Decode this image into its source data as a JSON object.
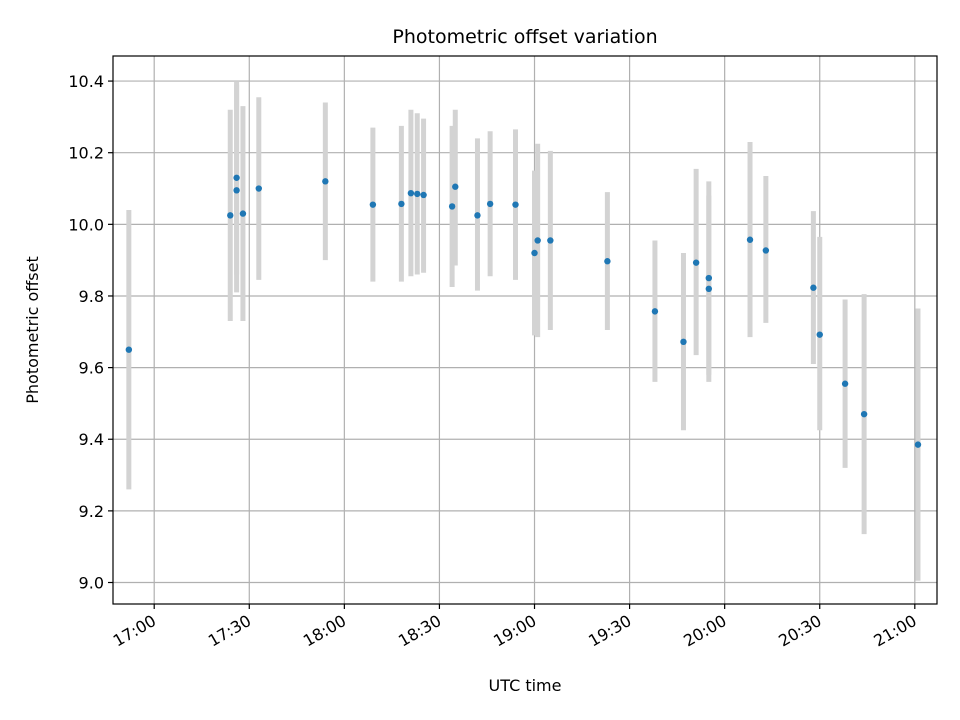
{
  "chart_data": {
    "type": "scatter",
    "title": "Photometric offset variation",
    "xlabel": "UTC time",
    "ylabel": "Photometric offset",
    "grid": true,
    "xlim": [
      "16:47",
      "21:07"
    ],
    "ylim": [
      8.94,
      10.47
    ],
    "x_ticks": [
      "17:00",
      "17:30",
      "18:00",
      "18:30",
      "19:00",
      "19:30",
      "20:00",
      "20:30",
      "21:00"
    ],
    "y_ticks": [
      "9.0",
      "9.2",
      "9.4",
      "9.6",
      "9.8",
      "10.0",
      "10.2",
      "10.4"
    ],
    "colors": {
      "point": "#1f77b4",
      "error_bar": "#d3d3d3",
      "grid": "#b0b0b0"
    },
    "series": [
      {
        "points": [
          {
            "t": "16:52",
            "y": 9.65,
            "lo": 9.26,
            "hi": 10.04
          },
          {
            "t": "17:24",
            "y": 10.025,
            "lo": 9.73,
            "hi": 10.32
          },
          {
            "t": "17:26",
            "y": 10.095,
            "lo": 9.81,
            "hi": 10.39
          },
          {
            "t": "17:26",
            "y": 10.13,
            "lo": 9.86,
            "hi": 10.4
          },
          {
            "t": "17:28",
            "y": 10.03,
            "lo": 9.73,
            "hi": 10.33
          },
          {
            "t": "17:33",
            "y": 10.1,
            "lo": 9.845,
            "hi": 10.355
          },
          {
            "t": "17:54",
            "y": 10.12,
            "lo": 9.9,
            "hi": 10.34
          },
          {
            "t": "18:09",
            "y": 10.055,
            "lo": 9.84,
            "hi": 10.27
          },
          {
            "t": "18:18",
            "y": 10.057,
            "lo": 9.84,
            "hi": 10.275
          },
          {
            "t": "18:21",
            "y": 10.087,
            "lo": 9.855,
            "hi": 10.32
          },
          {
            "t": "18:23",
            "y": 10.085,
            "lo": 9.86,
            "hi": 10.31
          },
          {
            "t": "18:25",
            "y": 10.082,
            "lo": 9.865,
            "hi": 10.295
          },
          {
            "t": "18:34",
            "y": 10.05,
            "lo": 9.825,
            "hi": 10.275
          },
          {
            "t": "18:35",
            "y": 10.105,
            "lo": 9.885,
            "hi": 10.32
          },
          {
            "t": "18:42",
            "y": 10.025,
            "lo": 9.815,
            "hi": 10.24
          },
          {
            "t": "18:46",
            "y": 10.057,
            "lo": 9.855,
            "hi": 10.26
          },
          {
            "t": "18:54",
            "y": 10.055,
            "lo": 9.845,
            "hi": 10.265
          },
          {
            "t": "19:00",
            "y": 9.92,
            "lo": 9.69,
            "hi": 10.15
          },
          {
            "t": "19:01",
            "y": 9.955,
            "lo": 9.685,
            "hi": 10.225
          },
          {
            "t": "19:05",
            "y": 9.955,
            "lo": 9.705,
            "hi": 10.205
          },
          {
            "t": "19:23",
            "y": 9.897,
            "lo": 9.705,
            "hi": 10.09
          },
          {
            "t": "19:38",
            "y": 9.757,
            "lo": 9.56,
            "hi": 9.955
          },
          {
            "t": "19:47",
            "y": 9.672,
            "lo": 9.425,
            "hi": 9.92
          },
          {
            "t": "19:51",
            "y": 9.893,
            "lo": 9.635,
            "hi": 10.155
          },
          {
            "t": "19:55",
            "y": 9.82,
            "lo": 9.56,
            "hi": 10.08
          },
          {
            "t": "19:55",
            "y": 9.85,
            "lo": 9.58,
            "hi": 10.12
          },
          {
            "t": "20:08",
            "y": 9.957,
            "lo": 9.685,
            "hi": 10.23
          },
          {
            "t": "20:13",
            "y": 9.927,
            "lo": 9.725,
            "hi": 10.135
          },
          {
            "t": "20:28",
            "y": 9.823,
            "lo": 9.61,
            "hi": 10.037
          },
          {
            "t": "20:30",
            "y": 9.692,
            "lo": 9.425,
            "hi": 9.965
          },
          {
            "t": "20:38",
            "y": 9.555,
            "lo": 9.32,
            "hi": 9.79
          },
          {
            "t": "20:44",
            "y": 9.47,
            "lo": 9.135,
            "hi": 9.805
          },
          {
            "t": "21:01",
            "y": 9.385,
            "lo": 9.005,
            "hi": 9.765
          }
        ]
      }
    ]
  }
}
